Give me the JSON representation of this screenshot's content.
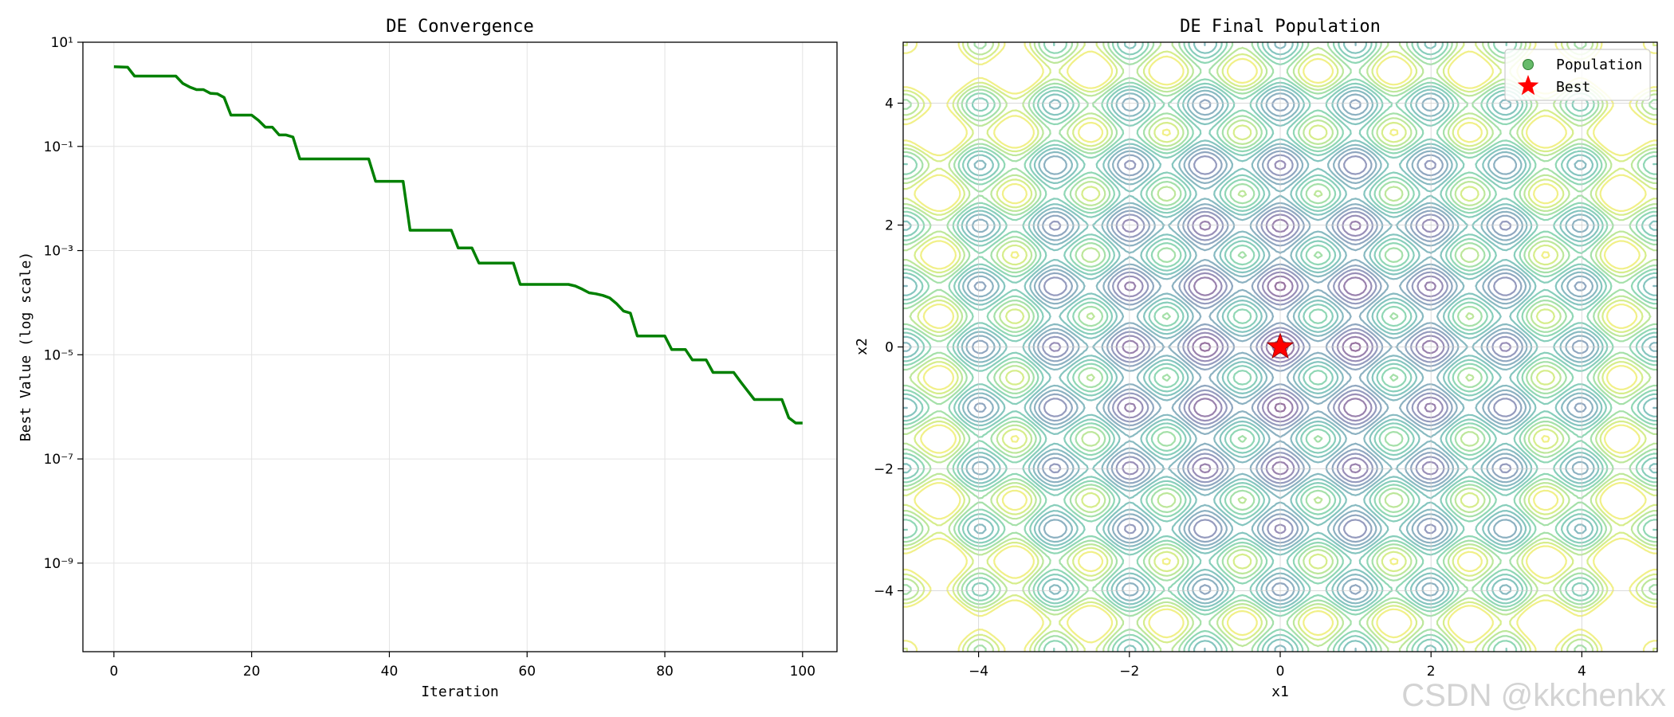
{
  "chart_data": [
    {
      "type": "line",
      "title": "DE Convergence",
      "xlabel": "Iteration",
      "ylabel": "Best Value (log scale)",
      "yscale": "log",
      "xlim": [
        -4.5,
        105
      ],
      "ylim_exp": [
        -10.7,
        1
      ],
      "xticks": [
        0,
        20,
        40,
        60,
        80,
        100
      ],
      "yticks": [
        {
          "exp": 1,
          "label": "10¹"
        },
        {
          "exp": -1,
          "label": "10⁻¹"
        },
        {
          "exp": -3,
          "label": "10⁻³"
        },
        {
          "exp": -5,
          "label": "10⁻⁵"
        },
        {
          "exp": -7,
          "label": "10⁻⁷"
        },
        {
          "exp": -9,
          "label": "10⁻⁹"
        }
      ],
      "grid": true,
      "line_color": "#008000",
      "series": [
        {
          "name": "Best Value",
          "x": [
            0,
            2,
            3,
            4,
            9,
            10,
            11,
            12,
            13,
            14,
            15,
            16,
            17,
            20,
            21,
            22,
            23,
            24,
            25,
            26,
            27,
            37,
            38,
            42,
            43,
            49,
            50,
            52,
            53,
            58,
            59,
            65,
            66,
            67,
            68,
            69,
            70,
            71,
            72,
            73,
            74,
            75,
            76,
            80,
            81,
            83,
            84,
            86,
            87,
            90,
            91,
            92,
            93,
            97,
            98,
            99,
            100
          ],
          "exp": [
            0.53,
            0.52,
            0.35,
            0.35,
            0.35,
            0.21,
            0.14,
            0.09,
            0.09,
            0.02,
            0.01,
            -0.06,
            -0.4,
            -0.4,
            -0.5,
            -0.63,
            -0.63,
            -0.78,
            -0.78,
            -0.82,
            -1.24,
            -1.24,
            -1.67,
            -1.67,
            -2.61,
            -2.61,
            -2.95,
            -2.95,
            -3.24,
            -3.24,
            -3.65,
            -3.65,
            -3.65,
            -3.68,
            -3.74,
            -3.81,
            -3.83,
            -3.86,
            -3.91,
            -4.02,
            -4.16,
            -4.2,
            -4.64,
            -4.64,
            -4.9,
            -4.9,
            -5.1,
            -5.1,
            -5.34,
            -5.34,
            -5.52,
            -5.69,
            -5.86,
            -5.86,
            -6.21,
            -6.31,
            -6.31
          ]
        }
      ]
    },
    {
      "type": "contour",
      "title": "DE Final Population",
      "xlabel": "x1",
      "ylabel": "x2",
      "xlim": [
        -5,
        5
      ],
      "ylim": [
        -5,
        5
      ],
      "xticks": [
        -4,
        -2,
        0,
        2,
        4
      ],
      "yticks": [
        -4,
        -2,
        0,
        2,
        4
      ],
      "xtick_labels": [
        "−4",
        "−2",
        "0",
        "2",
        "4"
      ],
      "ytick_labels": [
        "−4",
        "−2",
        "0",
        "2",
        "4"
      ],
      "grid": true,
      "function": "rastrigin",
      "colormap": "viridis",
      "legend": [
        {
          "label": "Population",
          "marker": "circle",
          "color": "#4caf50"
        },
        {
          "label": "Best",
          "marker": "star",
          "color": "#ff0000"
        }
      ],
      "legend_position": "top-right",
      "population_points": [
        [
          0,
          0
        ]
      ],
      "best_point": [
        0,
        0
      ]
    }
  ],
  "watermark": "CSDN @kkchenkx"
}
